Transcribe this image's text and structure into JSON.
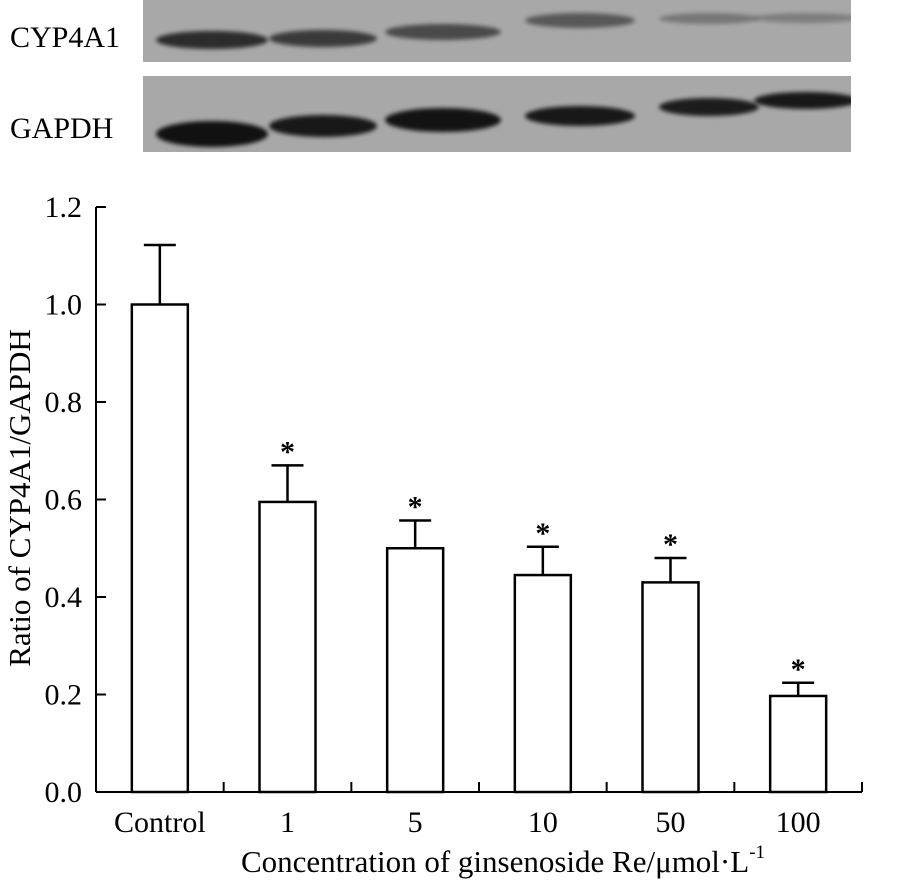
{
  "blot": {
    "rows": [
      {
        "label": "CYP4A1",
        "band_intensity": [
          0.82,
          0.72,
          0.62,
          0.52,
          0.32,
          0.28
        ]
      },
      {
        "label": "GAPDH",
        "band_intensity": [
          1.0,
          0.95,
          0.98,
          0.95,
          0.92,
          0.95
        ]
      }
    ],
    "background_color": "#a8a8a8",
    "band_color": "#111111"
  },
  "chart_data": {
    "type": "bar",
    "categories": [
      "Control",
      "1",
      "5",
      "10",
      "50",
      "100"
    ],
    "values": [
      1.0,
      0.595,
      0.5,
      0.445,
      0.43,
      0.197
    ],
    "errors": [
      0.122,
      0.075,
      0.057,
      0.058,
      0.05,
      0.027
    ],
    "significance": [
      "",
      "*",
      "*",
      "*",
      "*",
      "*"
    ],
    "xlabel": "Concentration of ginsenoside Re/μmol·L",
    "xlabel_superscript": "-1",
    "ylabel": "Ratio of CYP4A1/GAPDH",
    "ylim": [
      0,
      1.2
    ],
    "yticks": [
      "0.0",
      "0.2",
      "0.4",
      "0.6",
      "0.8",
      "1.0",
      "1.2"
    ],
    "grid": false,
    "bar_fill": "#ffffff",
    "bar_stroke": "#000000"
  }
}
